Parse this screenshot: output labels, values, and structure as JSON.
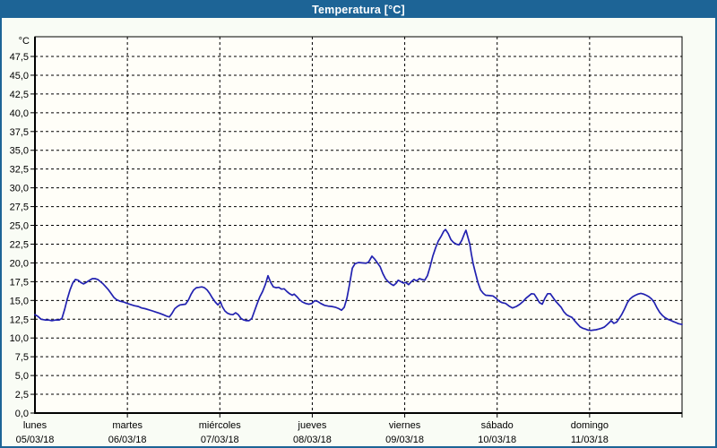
{
  "window": {
    "title": "Temperatura [°C]"
  },
  "colors": {
    "titlebar": "#1d6496",
    "window_border": "#1d6496",
    "panel_bg": "#f9fcf5",
    "plot_bg": "#fffef8",
    "line": "#2121b0",
    "grid": "#000000",
    "axis": "#000000",
    "text": "#000000",
    "title_text": "#ffffff"
  },
  "chart_data": {
    "type": "line",
    "title": "Temperatura [°C]",
    "grid": "dashed",
    "legend": "none",
    "y_axis": {
      "unit": "°C",
      "min": 0,
      "max": 47.5,
      "step": 2.5,
      "top_padding_deg": 2.6,
      "tick_labels": [
        "0,0",
        "2,5",
        "5,0",
        "7,5",
        "10,0",
        "12,5",
        "15,0",
        "17,5",
        "20,0",
        "22,5",
        "25,0",
        "27,5",
        "30,0",
        "32,5",
        "35,0",
        "37,5",
        "40,0",
        "42,5",
        "45,0",
        "47,5"
      ]
    },
    "x_axis": {
      "range_hours": [
        0,
        168
      ],
      "days": [
        {
          "name": "lunes",
          "date": "05/03/18"
        },
        {
          "name": "martes",
          "date": "06/03/18"
        },
        {
          "name": "miércoles",
          "date": "07/03/18"
        },
        {
          "name": "jueves",
          "date": "08/03/18"
        },
        {
          "name": "viernes",
          "date": "09/03/18"
        },
        {
          "name": "sábado",
          "date": "10/03/18"
        },
        {
          "name": "domingo",
          "date": "11/03/18"
        }
      ]
    },
    "series": [
      {
        "name": "Temperatura",
        "color": "#2121b0",
        "points": [
          [
            0,
            13.1
          ],
          [
            0.7,
            12.9
          ],
          [
            1.6,
            12.5
          ],
          [
            2.6,
            12.4
          ],
          [
            3.5,
            12.4
          ],
          [
            4.4,
            12.3
          ],
          [
            5.4,
            12.4
          ],
          [
            6.3,
            12.4
          ],
          [
            7,
            12.6
          ],
          [
            7.7,
            13.8
          ],
          [
            8.4,
            15.2
          ],
          [
            9.1,
            16.4
          ],
          [
            9.8,
            17.3
          ],
          [
            10.5,
            17.8
          ],
          [
            11.2,
            17.7
          ],
          [
            11.9,
            17.4
          ],
          [
            12.6,
            17.2
          ],
          [
            13.3,
            17.4
          ],
          [
            14.2,
            17.7
          ],
          [
            14.9,
            17.9
          ],
          [
            15.6,
            17.9
          ],
          [
            16.3,
            17.8
          ],
          [
            17,
            17.5
          ],
          [
            17.7,
            17.2
          ],
          [
            18.4,
            16.8
          ],
          [
            19.1,
            16.4
          ],
          [
            19.8,
            15.9
          ],
          [
            20.5,
            15.4
          ],
          [
            21.2,
            15.1
          ],
          [
            22.1,
            14.9
          ],
          [
            23,
            14.8
          ],
          [
            24,
            14.6
          ],
          [
            24.9,
            14.45
          ],
          [
            25.8,
            14.3
          ],
          [
            26.8,
            14.2
          ],
          [
            27.7,
            14.0
          ],
          [
            28.6,
            13.9
          ],
          [
            29.6,
            13.75
          ],
          [
            30.5,
            13.6
          ],
          [
            31.4,
            13.45
          ],
          [
            32.3,
            13.3
          ],
          [
            33.3,
            13.1
          ],
          [
            34.2,
            12.9
          ],
          [
            34.9,
            12.8
          ],
          [
            35.6,
            13.3
          ],
          [
            36.3,
            13.9
          ],
          [
            37,
            14.2
          ],
          [
            37.7,
            14.4
          ],
          [
            38.4,
            14.45
          ],
          [
            39.1,
            14.5
          ],
          [
            39.8,
            15.0
          ],
          [
            40.5,
            15.8
          ],
          [
            41.2,
            16.4
          ],
          [
            41.9,
            16.7
          ],
          [
            42.6,
            16.75
          ],
          [
            43.3,
            16.8
          ],
          [
            44,
            16.7
          ],
          [
            44.7,
            16.4
          ],
          [
            45.4,
            15.9
          ],
          [
            46.1,
            15.3
          ],
          [
            46.8,
            14.8
          ],
          [
            47.5,
            14.4
          ],
          [
            48.2,
            14.8
          ],
          [
            48.6,
            14.2
          ],
          [
            49.3,
            13.6
          ],
          [
            50,
            13.3
          ],
          [
            50.7,
            13.15
          ],
          [
            51.4,
            13.1
          ],
          [
            52.1,
            13.35
          ],
          [
            52.8,
            13.1
          ],
          [
            53.5,
            12.6
          ],
          [
            54.2,
            12.4
          ],
          [
            54.9,
            12.3
          ],
          [
            55.6,
            12.3
          ],
          [
            56.3,
            12.6
          ],
          [
            57,
            13.6
          ],
          [
            57.7,
            14.6
          ],
          [
            58.4,
            15.5
          ],
          [
            59.1,
            16.2
          ],
          [
            59.8,
            17.1
          ],
          [
            60.5,
            18.3
          ],
          [
            61.2,
            17.4
          ],
          [
            61.9,
            16.8
          ],
          [
            62.6,
            16.7
          ],
          [
            63.3,
            16.75
          ],
          [
            64,
            16.5
          ],
          [
            64.7,
            16.55
          ],
          [
            65.4,
            16.2
          ],
          [
            66.1,
            15.9
          ],
          [
            66.8,
            15.7
          ],
          [
            67.3,
            15.85
          ],
          [
            68,
            15.5
          ],
          [
            68.7,
            15.1
          ],
          [
            69.4,
            14.8
          ],
          [
            70.3,
            14.6
          ],
          [
            71.1,
            14.5
          ],
          [
            71.9,
            14.6
          ],
          [
            72.6,
            14.95
          ],
          [
            73.3,
            14.9
          ],
          [
            74.2,
            14.6
          ],
          [
            75.2,
            14.35
          ],
          [
            76.1,
            14.25
          ],
          [
            77,
            14.2
          ],
          [
            78,
            14.1
          ],
          [
            78.9,
            13.9
          ],
          [
            79.6,
            13.7
          ],
          [
            80.3,
            14.1
          ],
          [
            81,
            15.3
          ],
          [
            81.7,
            17.2
          ],
          [
            82.4,
            19.3
          ],
          [
            83.1,
            19.9
          ],
          [
            84,
            20.05
          ],
          [
            84.9,
            20.0
          ],
          [
            85.9,
            19.95
          ],
          [
            86.6,
            20.1
          ],
          [
            87.5,
            20.9
          ],
          [
            88.2,
            20.5
          ],
          [
            88.9,
            20.0
          ],
          [
            89.6,
            19.5
          ],
          [
            90.3,
            18.6
          ],
          [
            91,
            17.9
          ],
          [
            91.7,
            17.5
          ],
          [
            92.4,
            17.2
          ],
          [
            93.1,
            17.0
          ],
          [
            93.8,
            17.3
          ],
          [
            94.3,
            17.7
          ],
          [
            95,
            17.5
          ],
          [
            95.7,
            17.3
          ],
          [
            96.3,
            17.4
          ],
          [
            97,
            17.1
          ],
          [
            97.7,
            17.5
          ],
          [
            98.4,
            17.8
          ],
          [
            99.1,
            17.6
          ],
          [
            99.8,
            17.9
          ],
          [
            100.5,
            17.8
          ],
          [
            101.2,
            17.7
          ],
          [
            101.9,
            18.3
          ],
          [
            102.6,
            19.5
          ],
          [
            103.3,
            20.9
          ],
          [
            104,
            22.0
          ],
          [
            104.7,
            22.9
          ],
          [
            105.4,
            23.5
          ],
          [
            106.1,
            24.2
          ],
          [
            106.6,
            24.45
          ],
          [
            107.3,
            23.9
          ],
          [
            108,
            23.1
          ],
          [
            108.7,
            22.7
          ],
          [
            109.4,
            22.5
          ],
          [
            110.1,
            22.4
          ],
          [
            110.8,
            23.0
          ],
          [
            111.5,
            23.9
          ],
          [
            111.9,
            24.35
          ],
          [
            112.4,
            23.4
          ],
          [
            112.9,
            22.5
          ],
          [
            113.3,
            21.2
          ],
          [
            113.8,
            19.8
          ],
          [
            114.3,
            18.8
          ],
          [
            115,
            17.4
          ],
          [
            115.7,
            16.4
          ],
          [
            116.4,
            15.95
          ],
          [
            117,
            15.7
          ],
          [
            118,
            15.65
          ],
          [
            118.9,
            15.6
          ],
          [
            119.6,
            15.35
          ],
          [
            120.5,
            14.9
          ],
          [
            121.3,
            14.7
          ],
          [
            122.2,
            14.6
          ],
          [
            123.1,
            14.25
          ],
          [
            124,
            14.0
          ],
          [
            125,
            14.2
          ],
          [
            125.9,
            14.5
          ],
          [
            126.8,
            14.9
          ],
          [
            127.5,
            15.3
          ],
          [
            128.2,
            15.6
          ],
          [
            128.9,
            15.9
          ],
          [
            129.6,
            15.85
          ],
          [
            130.3,
            15.3
          ],
          [
            131,
            14.7
          ],
          [
            131.7,
            14.5
          ],
          [
            132.4,
            15.3
          ],
          [
            133.1,
            15.9
          ],
          [
            133.8,
            15.9
          ],
          [
            134.5,
            15.4
          ],
          [
            135.2,
            14.9
          ],
          [
            135.9,
            14.5
          ],
          [
            136.6,
            14.1
          ],
          [
            137.3,
            13.5
          ],
          [
            138,
            13.1
          ],
          [
            138.7,
            12.9
          ],
          [
            139.4,
            12.75
          ],
          [
            140.1,
            12.3
          ],
          [
            140.8,
            11.9
          ],
          [
            141.5,
            11.5
          ],
          [
            142.2,
            11.3
          ],
          [
            142.9,
            11.2
          ],
          [
            143.6,
            11.05
          ],
          [
            144.3,
            11.0
          ],
          [
            145,
            11.05
          ],
          [
            145.7,
            11.1
          ],
          [
            146.4,
            11.2
          ],
          [
            147.1,
            11.3
          ],
          [
            147.8,
            11.45
          ],
          [
            148.5,
            11.75
          ],
          [
            149.2,
            12.1
          ],
          [
            149.6,
            12.3
          ],
          [
            150.3,
            11.95
          ],
          [
            151,
            12.1
          ],
          [
            151.7,
            12.6
          ],
          [
            152.4,
            13.2
          ],
          [
            153.1,
            13.9
          ],
          [
            153.8,
            14.7
          ],
          [
            154.5,
            15.2
          ],
          [
            155.2,
            15.5
          ],
          [
            155.9,
            15.7
          ],
          [
            156.6,
            15.85
          ],
          [
            157.3,
            15.95
          ],
          [
            158,
            15.85
          ],
          [
            158.7,
            15.7
          ],
          [
            159.4,
            15.5
          ],
          [
            160.1,
            15.2
          ],
          [
            160.8,
            14.7
          ],
          [
            161.5,
            14.0
          ],
          [
            162.2,
            13.4
          ],
          [
            162.9,
            13.0
          ],
          [
            163.6,
            12.7
          ],
          [
            164.3,
            12.5
          ],
          [
            165,
            12.35
          ],
          [
            165.7,
            12.2
          ],
          [
            166.4,
            12.05
          ],
          [
            167.1,
            11.9
          ],
          [
            168,
            11.8
          ]
        ]
      }
    ]
  }
}
